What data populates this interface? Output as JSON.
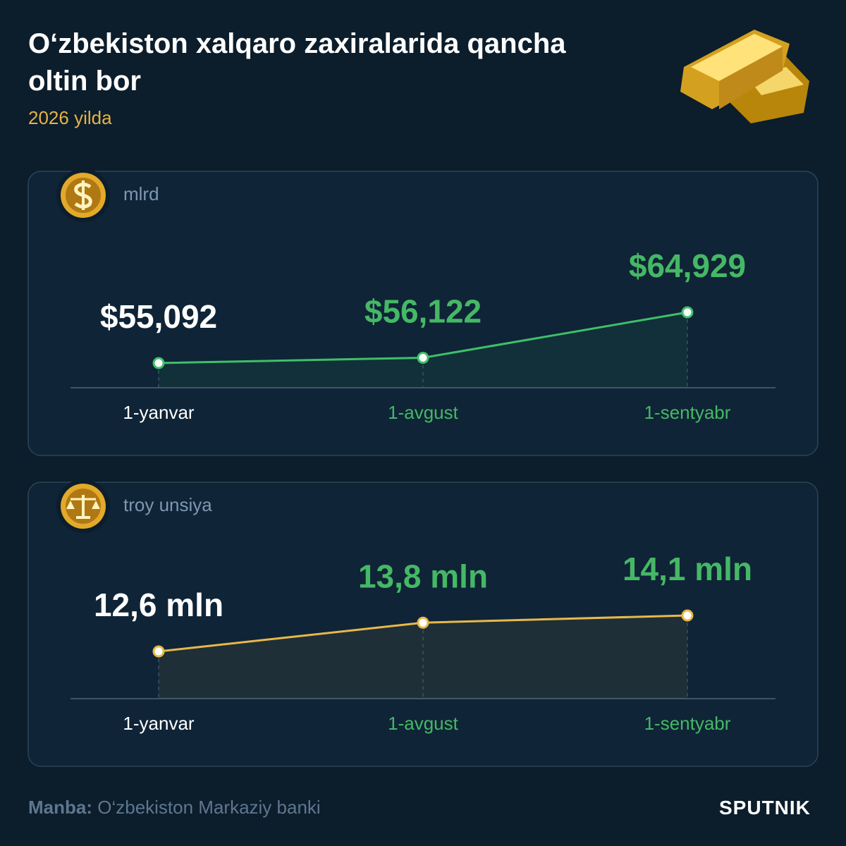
{
  "header": {
    "title": "O‘zbekiston xalqaro zaxiralarida qancha oltin bor",
    "subtitle": "2026 yilda"
  },
  "chart_data": [
    {
      "type": "line",
      "unit": "mlrd",
      "categories": [
        "1-yanvar",
        "1-avgust",
        "1-sentyabr"
      ],
      "series": [
        {
          "color": "#3fbf6a",
          "values": [
            55.092,
            56.122,
            64.929
          ],
          "value_labels": [
            "$55,092",
            "$56,122",
            "$64,929"
          ]
        }
      ]
    },
    {
      "type": "line",
      "unit": "troy unsiya",
      "categories": [
        "1-yanvar",
        "1-avgust",
        "1-sentyabr"
      ],
      "series": [
        {
          "color": "#e8b84a",
          "values": [
            12.6,
            13.8,
            14.1
          ],
          "value_labels": [
            "12,6 mln",
            "13,8 mln",
            "14,1 mln"
          ]
        }
      ]
    }
  ],
  "footer": {
    "source_label": "Manba:",
    "source": "O‘zbekiston Markaziy banki",
    "brand": "SPUTNIK"
  }
}
